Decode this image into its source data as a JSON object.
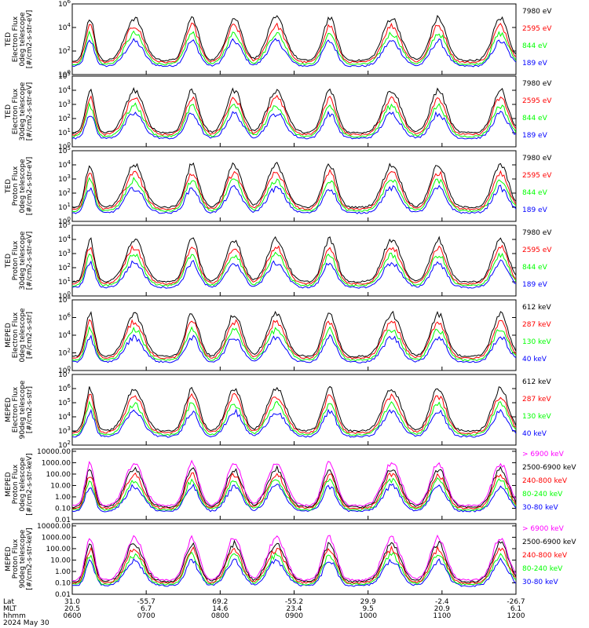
{
  "chart_data": [
    {
      "type": "line",
      "kind": "ted-electron-0",
      "ylabel": [
        "TED",
        "Electron Flux",
        "0deg telescope",
        "[#/cm2-s-str-eV]"
      ],
      "yscale": "log",
      "yticks": [
        {
          "v": 0,
          "lead": "10",
          "exp": "0"
        },
        {
          "v": 2,
          "lead": "10",
          "exp": "2"
        },
        {
          "v": 4,
          "lead": "10",
          "exp": "4"
        },
        {
          "v": 6,
          "lead": "10",
          "exp": "6"
        }
      ],
      "ymin": 0,
      "ymax": 6,
      "series": [
        {
          "name": "7980 eV",
          "color": "#000000"
        },
        {
          "name": "2595 eV",
          "color": "#ff0000"
        },
        {
          "name": "844 eV",
          "color": "#00ff00"
        },
        {
          "name": "189 eV",
          "color": "#0000ff"
        }
      ]
    },
    {
      "type": "line",
      "kind": "ted-electron-30",
      "ylabel": [
        "TED",
        "Electron Flux",
        "30deg telescope",
        "[#/cm2-s-str-eV]"
      ],
      "yscale": "log",
      "yticks": [
        {
          "v": 0,
          "lead": "10",
          "exp": "0"
        },
        {
          "v": 1,
          "lead": "10",
          "exp": "1"
        },
        {
          "v": 2,
          "lead": "10",
          "exp": "2"
        },
        {
          "v": 3,
          "lead": "10",
          "exp": "3"
        },
        {
          "v": 4,
          "lead": "10",
          "exp": "4"
        },
        {
          "v": 5,
          "lead": "10",
          "exp": "5"
        }
      ],
      "ymin": 0,
      "ymax": 5,
      "series": [
        {
          "name": "7980 eV",
          "color": "#000000"
        },
        {
          "name": "2595 eV",
          "color": "#ff0000"
        },
        {
          "name": "844 eV",
          "color": "#00ff00"
        },
        {
          "name": "189 eV",
          "color": "#0000ff"
        }
      ]
    },
    {
      "type": "line",
      "kind": "ted-proton-0",
      "ylabel": [
        "TED",
        "Proton Flux",
        "0deg telescope",
        "[#/cm2-s-str-eV]"
      ],
      "yscale": "log",
      "yticks": [
        {
          "v": 0,
          "lead": "10",
          "exp": "0"
        },
        {
          "v": 1,
          "lead": "10",
          "exp": "1"
        },
        {
          "v": 2,
          "lead": "10",
          "exp": "2"
        },
        {
          "v": 3,
          "lead": "10",
          "exp": "3"
        },
        {
          "v": 4,
          "lead": "10",
          "exp": "4"
        },
        {
          "v": 5,
          "lead": "10",
          "exp": "5"
        }
      ],
      "ymin": 0,
      "ymax": 5,
      "series": [
        {
          "name": "7980 eV",
          "color": "#000000"
        },
        {
          "name": "2595 eV",
          "color": "#ff0000"
        },
        {
          "name": "844 eV",
          "color": "#00ff00"
        },
        {
          "name": "189 eV",
          "color": "#0000ff"
        }
      ]
    },
    {
      "type": "line",
      "kind": "ted-proton-30",
      "ylabel": [
        "TED",
        "Proton Flux",
        "30deg telescope",
        "[#/cm2-s-str-eV]"
      ],
      "yscale": "log",
      "yticks": [
        {
          "v": 0,
          "lead": "10",
          "exp": "0"
        },
        {
          "v": 1,
          "lead": "10",
          "exp": "1"
        },
        {
          "v": 2,
          "lead": "10",
          "exp": "2"
        },
        {
          "v": 3,
          "lead": "10",
          "exp": "3"
        },
        {
          "v": 4,
          "lead": "10",
          "exp": "4"
        },
        {
          "v": 5,
          "lead": "10",
          "exp": "5"
        }
      ],
      "ymin": 0,
      "ymax": 5,
      "series": [
        {
          "name": "7980 eV",
          "color": "#000000"
        },
        {
          "name": "2595 eV",
          "color": "#ff0000"
        },
        {
          "name": "844 eV",
          "color": "#00ff00"
        },
        {
          "name": "189 eV",
          "color": "#0000ff"
        }
      ]
    },
    {
      "type": "line",
      "kind": "meped-electron-0",
      "ylabel": [
        "MEPED",
        "Electron Flux",
        "0deg telescope",
        "[#/cm2-s-str]"
      ],
      "yscale": "log",
      "yticks": [
        {
          "v": 0,
          "lead": "10",
          "exp": "0"
        },
        {
          "v": 2,
          "lead": "10",
          "exp": "2"
        },
        {
          "v": 4,
          "lead": "10",
          "exp": "4"
        },
        {
          "v": 6,
          "lead": "10",
          "exp": "6"
        },
        {
          "v": 8,
          "lead": "10",
          "exp": "8"
        }
      ],
      "ymin": 0,
      "ymax": 8,
      "series": [
        {
          "name": "612 keV",
          "color": "#000000"
        },
        {
          "name": "287 keV",
          "color": "#ff0000"
        },
        {
          "name": "130 keV",
          "color": "#00ff00"
        },
        {
          "name": "40 keV",
          "color": "#0000ff"
        }
      ]
    },
    {
      "type": "line",
      "kind": "meped-electron-90",
      "ylabel": [
        "MEPED",
        "Electron Flux",
        "90deg telescope",
        "[#/cm2-s-str]"
      ],
      "yscale": "log",
      "yticks": [
        {
          "v": 2,
          "lead": "10",
          "exp": "2"
        },
        {
          "v": 3,
          "lead": "10",
          "exp": "3"
        },
        {
          "v": 4,
          "lead": "10",
          "exp": "4"
        },
        {
          "v": 5,
          "lead": "10",
          "exp": "5"
        },
        {
          "v": 6,
          "lead": "10",
          "exp": "6"
        },
        {
          "v": 7,
          "lead": "10",
          "exp": "7"
        }
      ],
      "ymin": 2,
      "ymax": 7,
      "series": [
        {
          "name": "612 keV",
          "color": "#000000"
        },
        {
          "name": "287 keV",
          "color": "#ff0000"
        },
        {
          "name": "130 keV",
          "color": "#00ff00"
        },
        {
          "name": "40 keV",
          "color": "#0000ff"
        }
      ]
    },
    {
      "type": "line",
      "kind": "meped-proton-0",
      "ylabel": [
        "MEPED",
        "Proton Flux",
        "0deg telescope",
        "[#/cm2-s-str-keV]"
      ],
      "yscale": "log",
      "yticks": [
        {
          "v": -2,
          "lead": "0.01"
        },
        {
          "v": -1,
          "lead": "0.10"
        },
        {
          "v": 0,
          "lead": "1.00"
        },
        {
          "v": 1,
          "lead": "10.00"
        },
        {
          "v": 2,
          "lead": "100.00"
        },
        {
          "v": 3,
          "lead": "1000.00"
        },
        {
          "v": 4,
          "lead": "10000.00"
        }
      ],
      "ymin": -2,
      "ymax": 4.2,
      "series": [
        {
          "name": "> 6900 keV",
          "color": "#ff00ff"
        },
        {
          "name": "2500-6900 keV",
          "color": "#000000"
        },
        {
          "name": "240-800 keV",
          "color": "#ff0000"
        },
        {
          "name": "80-240 keV",
          "color": "#00ff00"
        },
        {
          "name": "30-80 keV",
          "color": "#0000ff"
        }
      ]
    },
    {
      "type": "line",
      "kind": "meped-proton-90",
      "ylabel": [
        "MEPED",
        "Proton Flux",
        "90deg telescope",
        "[#/cm2-s-str-keV]"
      ],
      "yscale": "log",
      "yticks": [
        {
          "v": -2,
          "lead": "0.01"
        },
        {
          "v": -1,
          "lead": "0.10"
        },
        {
          "v": 0,
          "lead": "1.00"
        },
        {
          "v": 1,
          "lead": "10.00"
        },
        {
          "v": 2,
          "lead": "100.00"
        },
        {
          "v": 3,
          "lead": "1000.00"
        },
        {
          "v": 4,
          "lead": "10000.00"
        }
      ],
      "ymin": -2,
      "ymax": 4.2,
      "series": [
        {
          "name": "> 6900 keV",
          "color": "#ff00ff"
        },
        {
          "name": "2500-6900 keV",
          "color": "#000000"
        },
        {
          "name": "240-800 keV",
          "color": "#ff0000"
        },
        {
          "name": "80-240 keV",
          "color": "#00ff00"
        },
        {
          "name": "30-80 keV",
          "color": "#0000ff"
        }
      ]
    }
  ],
  "x_axis": {
    "type": "time",
    "start": "0600",
    "end": "1200",
    "rows": [
      {
        "label": "Lat",
        "values": [
          "31.0",
          "-55.7",
          "69.2",
          "-55.2",
          "29.9",
          "-2.4",
          "-26.7"
        ]
      },
      {
        "label": "MLT",
        "values": [
          "20.5",
          "6.7",
          "14.6",
          "23.4",
          "9.5",
          "20.9",
          "6.1"
        ]
      },
      {
        "label": "hhmm",
        "values": [
          "0600",
          "0700",
          "0800",
          "0900",
          "1000",
          "1100",
          "1200"
        ]
      }
    ],
    "date": "2024 May 30"
  }
}
